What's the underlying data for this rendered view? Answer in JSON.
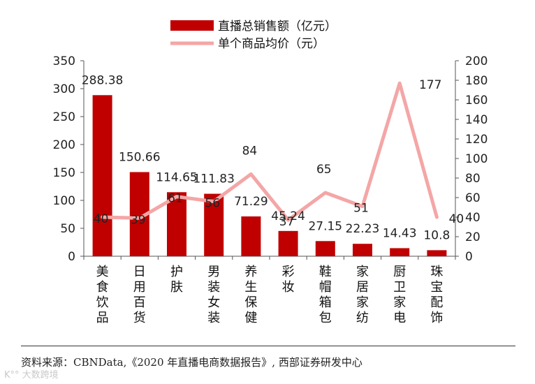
{
  "chart_data": {
    "type": "bar",
    "categories": [
      "美食饮品",
      "日用百货",
      "护肤",
      "男装女装",
      "养生保健",
      "彩妆",
      "鞋帽箱包",
      "家居家纺",
      "厨卫家电",
      "珠宝配饰"
    ],
    "series": [
      {
        "name": "直播总销售额（亿元）",
        "type": "bar",
        "axis": "left",
        "color": "#c00000",
        "values": [
          288.38,
          150.66,
          114.65,
          111.83,
          71.29,
          45.24,
          27.15,
          22.23,
          14.43,
          10.8
        ]
      },
      {
        "name": "单个商品均价（元）",
        "type": "line",
        "axis": "right",
        "color": "#f4a6a6",
        "values": [
          40,
          39,
          61,
          56,
          84,
          37,
          65,
          51,
          177,
          40
        ]
      }
    ],
    "y_left": {
      "range": [
        0,
        350
      ],
      "ticks": [
        "0",
        "50",
        "100",
        "150",
        "200",
        "250",
        "300",
        "350"
      ]
    },
    "y_right": {
      "range": [
        0,
        200
      ],
      "ticks": [
        "0",
        "20",
        "40",
        "60",
        "80",
        "100",
        "120",
        "140",
        "160",
        "180",
        "200"
      ]
    },
    "legend_position": "top"
  },
  "source_text": "资料来源：CBNData,《2020 年直播电商数据报告》, 西部证券研发中心",
  "watermark": "K°° 大数跨境"
}
